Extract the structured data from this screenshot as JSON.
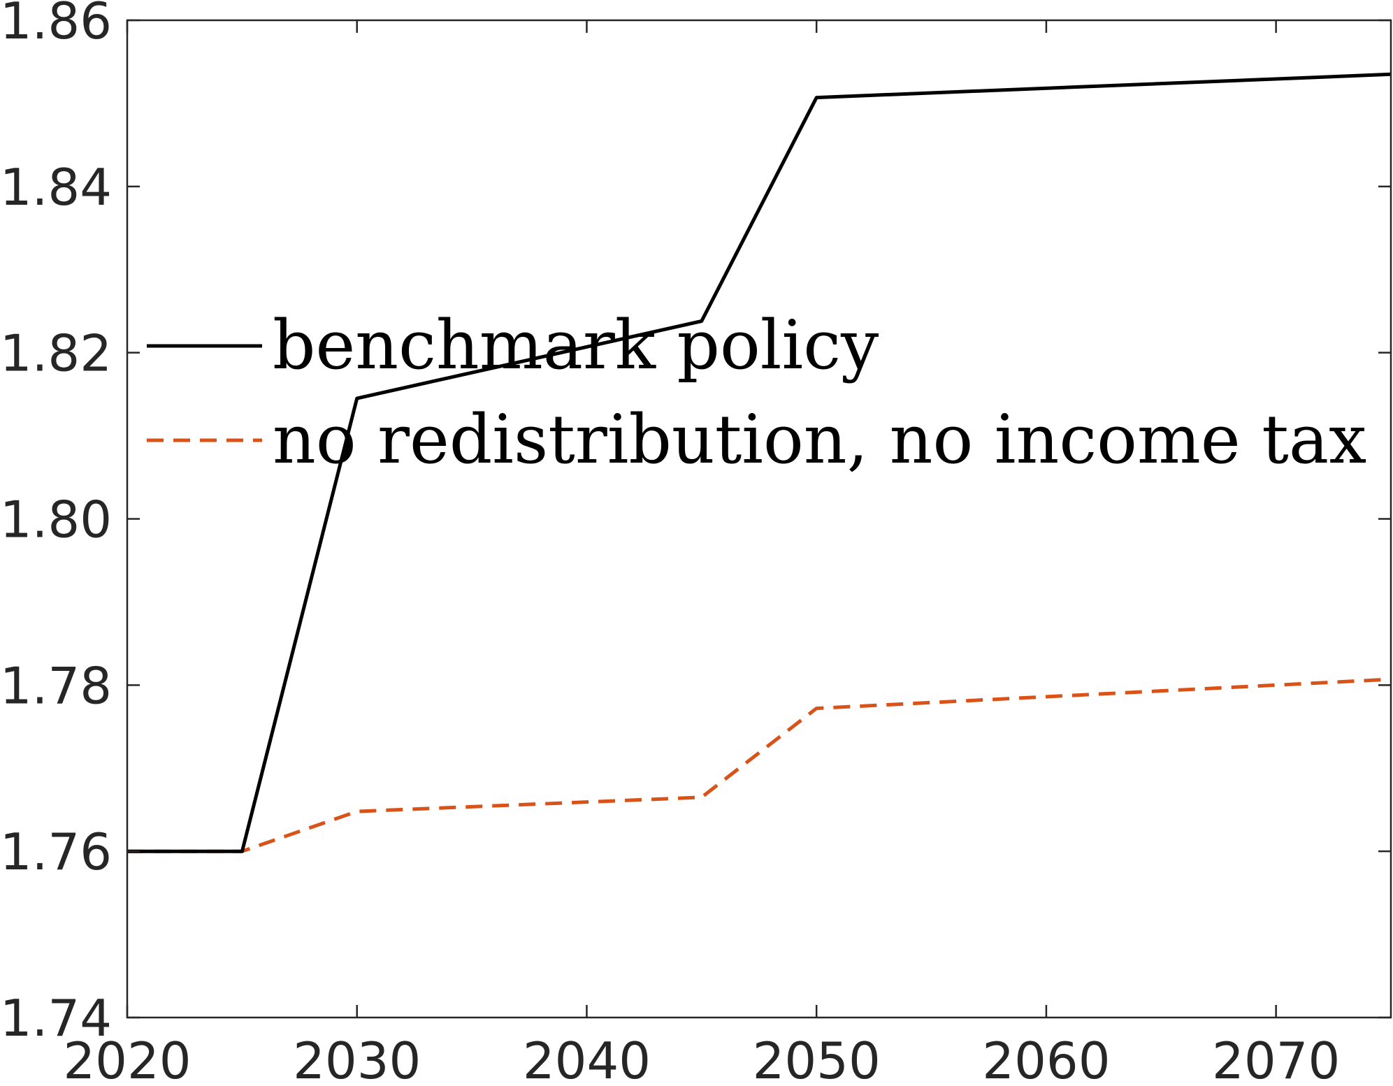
{
  "chart_data": {
    "type": "line",
    "title": "",
    "xlabel": "",
    "ylabel": "",
    "xlim": [
      2020,
      2075
    ],
    "ylim": [
      1.74,
      1.86
    ],
    "xticks": [
      "2020",
      "2030",
      "2040",
      "2050",
      "2060",
      "2070"
    ],
    "yticks": [
      "1.74",
      "1.76",
      "1.78",
      "1.80",
      "1.82",
      "1.84",
      "1.86"
    ],
    "grid": false,
    "legend_position": "center-left",
    "series": [
      {
        "name": "benchmark policy",
        "color": "#000000",
        "style": "solid",
        "x": [
          2020,
          2025,
          2030,
          2045,
          2050,
          2075
        ],
        "y": [
          1.76,
          1.76,
          1.8145,
          1.8238,
          1.8507,
          1.8535
        ]
      },
      {
        "name": "no redistribution, no income tax",
        "color": "#D95319",
        "style": "dashed",
        "x": [
          2020,
          2025,
          2030,
          2045,
          2050,
          2075
        ],
        "y": [
          1.76,
          1.76,
          1.7648,
          1.7665,
          1.7772,
          1.7807
        ]
      }
    ]
  }
}
